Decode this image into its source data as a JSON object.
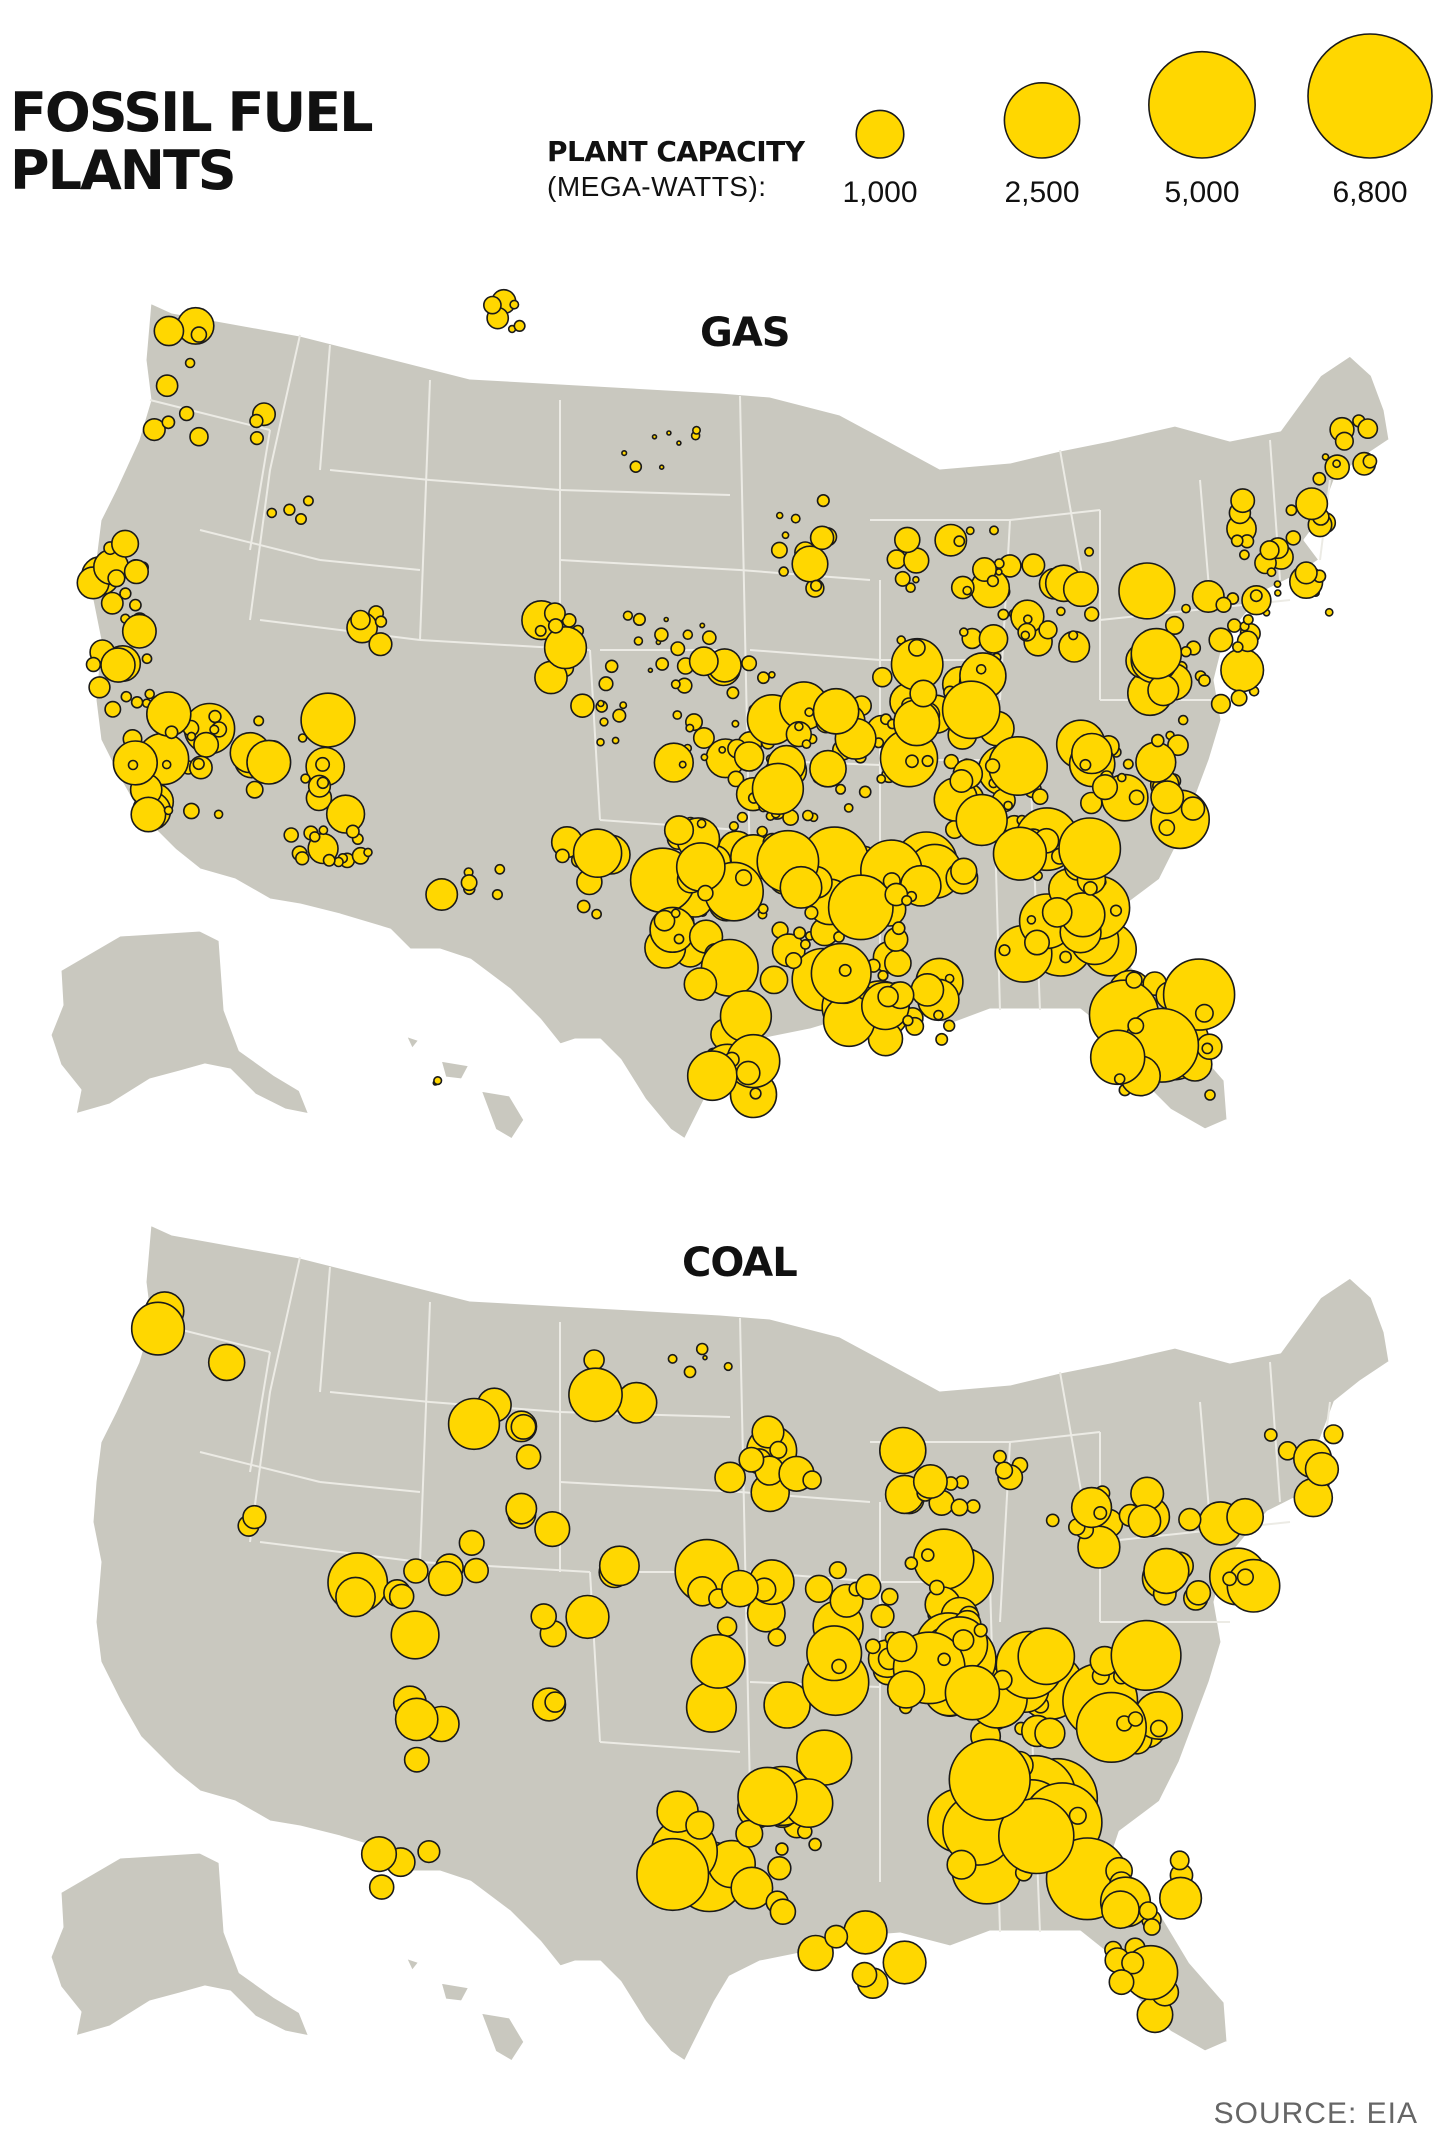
{
  "title_line1": "FOSSIL FUEL",
  "title_line2": "PLANTS",
  "legend": {
    "label_line1": "PLANT CAPACITY",
    "label_line2": "(MEGA-WATTS):",
    "sizes": [
      {
        "label": "1,000",
        "mw": 1000
      },
      {
        "label": "2,500",
        "mw": 2500
      },
      {
        "label": "5,000",
        "mw": 5000
      },
      {
        "label": "6,800",
        "mw": 6800
      }
    ]
  },
  "maps": [
    {
      "id": "gas",
      "title": "GAS"
    },
    {
      "id": "coal",
      "title": "COAL"
    }
  ],
  "source": "SOURCE: EIA",
  "colors": {
    "marker_fill": "#ffd700",
    "marker_stroke": "#1a1a1a",
    "land": "#c9c8bf"
  }
}
